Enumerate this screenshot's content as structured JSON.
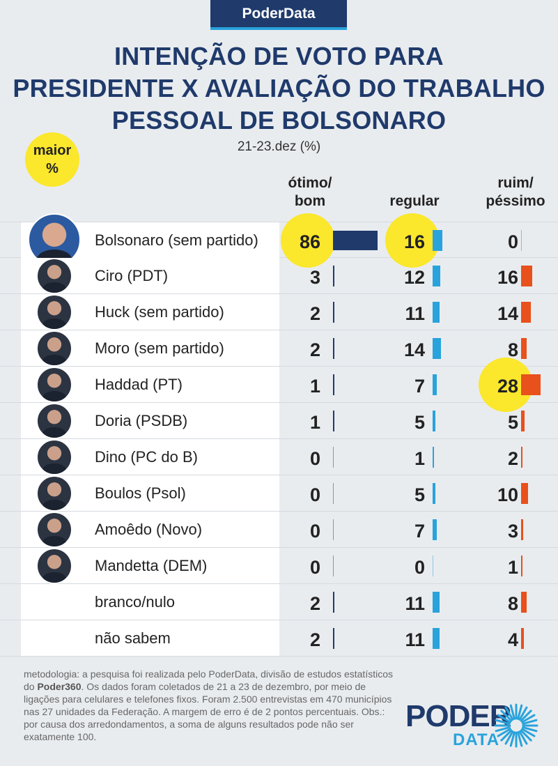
{
  "badge": "PoderData",
  "title_lines": [
    "INTENÇÃO DE VOTO PARA",
    "PRESIDENTE X AVALIAÇÃO DO TRABALHO",
    "PESSOAL DE BOLSONARO"
  ],
  "subtitle": "21-23.dez (%)",
  "maior": [
    "maior",
    "%"
  ],
  "columns": {
    "otimo": [
      "ótimo/",
      "bom"
    ],
    "regular": [
      "regular"
    ],
    "ruim": [
      "ruim/",
      "péssimo"
    ]
  },
  "colors": {
    "otimo": "#1f3a6b",
    "regular": "#29a3dc",
    "ruim": "#e8501c",
    "highlight": "#fbe72c"
  },
  "chart_data": {
    "type": "table",
    "title": "INTENÇÃO DE VOTO PARA PRESIDENTE X AVALIAÇÃO DO TRABALHO PESSOAL DE BOLSONARO",
    "subtitle": "21-23.dez (%)",
    "series": [
      {
        "name": "ótimo/bom",
        "values": [
          86,
          3,
          2,
          2,
          1,
          1,
          0,
          0,
          0,
          0,
          2,
          2
        ]
      },
      {
        "name": "regular",
        "values": [
          16,
          12,
          11,
          14,
          7,
          5,
          1,
          5,
          7,
          0,
          11,
          11
        ]
      },
      {
        "name": "ruim/péssimo",
        "values": [
          0,
          16,
          14,
          8,
          28,
          5,
          2,
          10,
          3,
          1,
          8,
          4
        ]
      }
    ],
    "categories": [
      "Bolsonaro (sem partido)",
      "Ciro (PDT)",
      "Huck (sem partido)",
      "Moro (sem partido)",
      "Haddad (PT)",
      "Doria (PSDB)",
      "Dino (PC do B)",
      "Boulos (Psol)",
      "Amoêdo (Novo)",
      "Mandetta (DEM)",
      "branco/nulo",
      "não sabem"
    ],
    "rows": [
      {
        "name": "Bolsonaro (sem partido)",
        "photo": true,
        "otimo": 86,
        "regular": 16,
        "ruim": 0
      },
      {
        "name": "Ciro (PDT)",
        "photo": true,
        "otimo": 3,
        "regular": 12,
        "ruim": 16
      },
      {
        "name": "Huck (sem partido)",
        "photo": true,
        "otimo": 2,
        "regular": 11,
        "ruim": 14
      },
      {
        "name": "Moro (sem partido)",
        "photo": true,
        "otimo": 2,
        "regular": 14,
        "ruim": 8
      },
      {
        "name": "Haddad (PT)",
        "photo": true,
        "otimo": 1,
        "regular": 7,
        "ruim": 28
      },
      {
        "name": "Doria (PSDB)",
        "photo": true,
        "otimo": 1,
        "regular": 5,
        "ruim": 5
      },
      {
        "name": "Dino (PC do B)",
        "photo": true,
        "otimo": 0,
        "regular": 1,
        "ruim": 2
      },
      {
        "name": "Boulos (Psol)",
        "photo": true,
        "otimo": 0,
        "regular": 5,
        "ruim": 10
      },
      {
        "name": "Amoêdo (Novo)",
        "photo": true,
        "otimo": 0,
        "regular": 7,
        "ruim": 3
      },
      {
        "name": "Mandetta (DEM)",
        "photo": true,
        "otimo": 0,
        "regular": 0,
        "ruim": 1
      },
      {
        "name": "branco/nulo",
        "photo": false,
        "otimo": 2,
        "regular": 11,
        "ruim": 8
      },
      {
        "name": "não sabem",
        "photo": false,
        "otimo": 2,
        "regular": 11,
        "ruim": 4
      }
    ],
    "highlights": [
      {
        "row": "Bolsonaro (sem partido)",
        "column": "otimo"
      },
      {
        "row": "Bolsonaro (sem partido)",
        "column": "regular"
      },
      {
        "row": "Haddad (PT)",
        "column": "ruim"
      }
    ]
  },
  "footnote": {
    "before": "metodologia: a pesquisa foi realizada pelo PoderData, divisão de estudos estatísticos do ",
    "bold": "Poder360",
    "after": ". Os dados foram coletados de 21 a 23 de dezembro, por meio de ligações para celulares e telefones fixos. Foram 2.500 entrevistas em 470 municípios nas 27 unidades da Federação. A margem de erro é de 2 pontos percentuais. Obs.: por causa dos arredondamentos, a soma de alguns resultados pode não ser exatamente 100."
  },
  "logo": {
    "top": "PODER",
    "bottom": "DATA"
  }
}
